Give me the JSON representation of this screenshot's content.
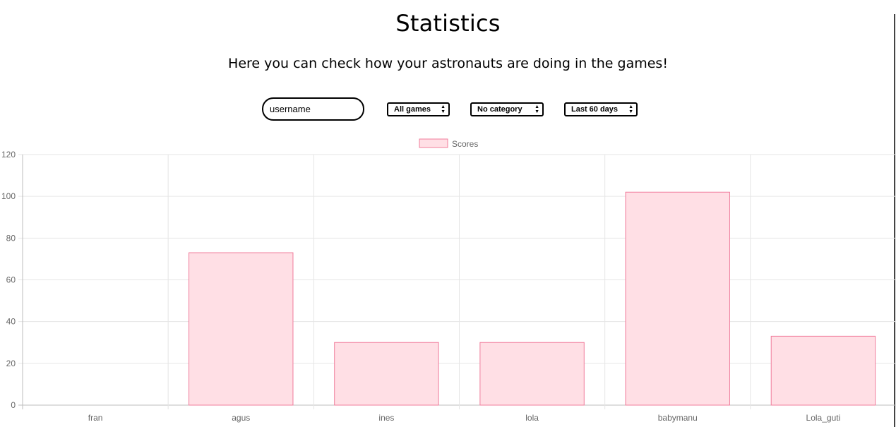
{
  "header": {
    "title": "Statistics",
    "subtitle": "Here you can check how your astronauts are doing in the games!"
  },
  "filters": {
    "username_value": "username",
    "game_select": "All games",
    "category_select": "No category",
    "period_select": "Last 60 days"
  },
  "chart_data": {
    "type": "bar",
    "categories": [
      "fran",
      "agus",
      "ines",
      "lola",
      "babymanu",
      "Lola_guti"
    ],
    "series": [
      {
        "name": "Scores",
        "values": [
          0,
          73,
          30,
          30,
          102,
          33
        ]
      }
    ],
    "ylim": [
      0,
      120
    ],
    "yticks": [
      0,
      20,
      40,
      60,
      80,
      100,
      120
    ],
    "grid": true,
    "legend": "top-center",
    "colors": {
      "fill": "#ffdfe5",
      "stroke": "#f07c9b",
      "grid": "#e6e6e6",
      "axis": "#666666"
    }
  }
}
